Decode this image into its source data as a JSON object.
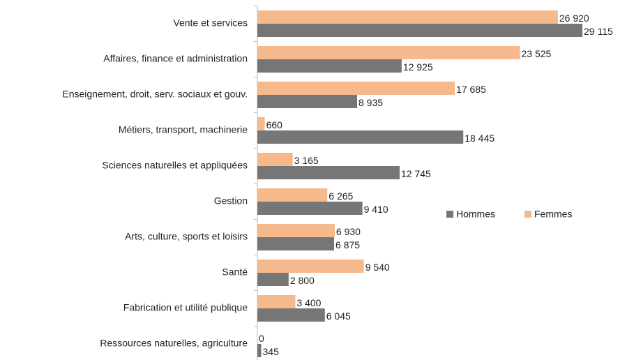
{
  "chart_data": {
    "type": "bar",
    "orientation": "horizontal",
    "categories": [
      "Vente et services",
      "Affaires, finance et administration",
      "Enseignement, droit, serv. sociaux et gouv.",
      "Métiers, transport, machinerie",
      "Sciences naturelles et appliquées",
      "Gestion",
      "Arts, culture, sports et loisirs",
      "Santé",
      "Fabrication et utilité publique",
      "Ressources naturelles, agriculture"
    ],
    "series": [
      {
        "name": "Hommes",
        "color": "#767676",
        "values": [
          29115,
          12925,
          8935,
          18445,
          12745,
          9410,
          6875,
          2800,
          6045,
          345
        ],
        "value_labels": [
          "29 115",
          "12 925",
          "8 935",
          "18 445",
          "12 745",
          "9 410",
          "6 875",
          "2 800",
          "6 045",
          "345"
        ]
      },
      {
        "name": "Femmes",
        "color": "#f5b98b",
        "values": [
          26920,
          23525,
          17685,
          660,
          3165,
          6265,
          6930,
          9540,
          3400,
          0
        ],
        "value_labels": [
          "26 920",
          "23 525",
          "17 685",
          "660",
          "3 165",
          "6 265",
          "6 930",
          "9 540",
          "3 400",
          "0"
        ]
      }
    ],
    "legend": "right"
  }
}
